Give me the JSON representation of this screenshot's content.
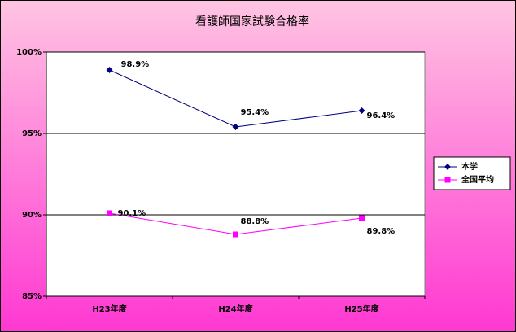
{
  "chart_data": {
    "type": "line",
    "title": "看護師国家試験合格率",
    "categories": [
      "H23年度",
      "H24年度",
      "H25年度"
    ],
    "series": [
      {
        "name": "本学",
        "color": "#000080",
        "marker": "diamond",
        "values": [
          98.9,
          95.4,
          96.4
        ],
        "value_labels": [
          "98.9%",
          "95.4%",
          "96.4%"
        ]
      },
      {
        "name": "全国平均",
        "color": "#ff00ff",
        "marker": "square",
        "values": [
          90.1,
          88.8,
          89.8
        ],
        "value_labels": [
          "90.1%",
          "88.8%",
          "89.8%"
        ]
      }
    ],
    "ylim": [
      85,
      100
    ],
    "yticks": [
      {
        "value": 85,
        "label": "85%"
      },
      {
        "value": 90,
        "label": "90%"
      },
      {
        "value": 95,
        "label": "95%"
      },
      {
        "value": 100,
        "label": "100%"
      }
    ],
    "grid": true,
    "legend": "right"
  }
}
